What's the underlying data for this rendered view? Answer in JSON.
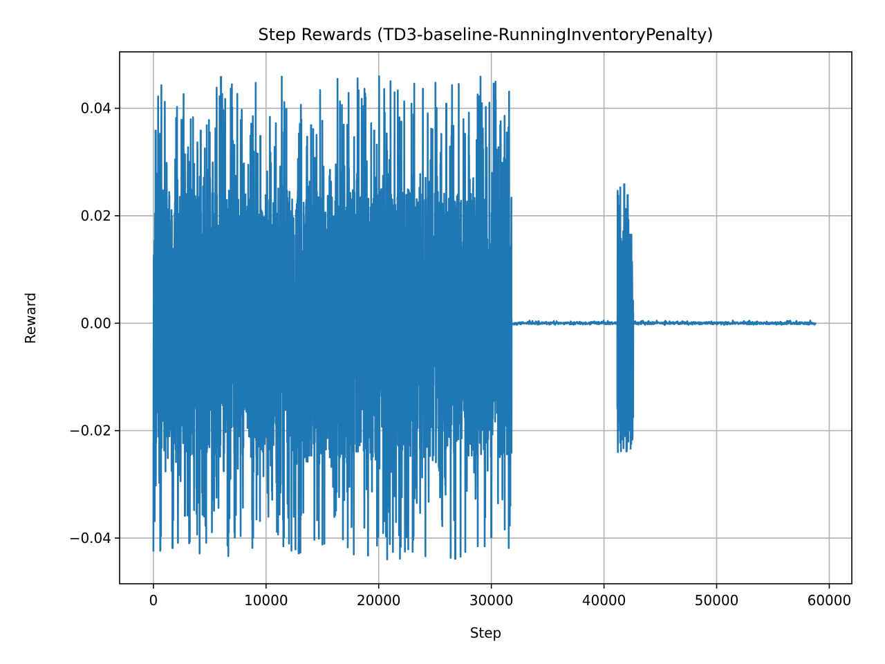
{
  "chart_data": {
    "type": "line",
    "title": "Step Rewards (TD3-baseline-RunningInventoryPenalty)",
    "xlabel": "Step",
    "ylabel": "Reward",
    "xlim": [
      -3000,
      62000
    ],
    "ylim": [
      -0.0485,
      0.0505
    ],
    "xticks": [
      0,
      10000,
      20000,
      30000,
      40000,
      50000,
      60000
    ],
    "xtick_labels": [
      "0",
      "10000",
      "20000",
      "30000",
      "40000",
      "50000",
      "60000"
    ],
    "yticks": [
      -0.04,
      -0.02,
      0.0,
      0.02,
      0.04
    ],
    "ytick_labels": [
      "−0.04",
      "−0.02",
      "0.00",
      "0.02",
      "0.04"
    ],
    "grid": true,
    "legend": "none",
    "series_color": "#1f77b4",
    "series": [
      {
        "points_note_omitted": true,
        "segments": [
          {
            "x_start": 0,
            "x_end": 31800,
            "min": -0.044,
            "max": 0.046,
            "typical_range": [
              -0.025,
              0.025
            ]
          },
          {
            "x_start": 31800,
            "x_end": 41200,
            "min": -0.0003,
            "max": 0.0005,
            "typical_range": [
              -0.0002,
              0.0002
            ]
          },
          {
            "x_start": 41200,
            "x_end": 42600,
            "min": -0.024,
            "max": 0.026,
            "typical_range": [
              -0.02,
              0.02
            ]
          },
          {
            "x_start": 42600,
            "x_end": 58800,
            "min": -0.0003,
            "max": 0.0005,
            "typical_range": [
              -0.0002,
              0.0002
            ]
          }
        ],
        "spikes": [
          {
            "x": 100,
            "y": -0.037
          },
          {
            "x": 200,
            "y": 0.036
          },
          {
            "x": 300,
            "y": 0.028
          },
          {
            "x": 1700,
            "y": -0.042
          },
          {
            "x": 2500,
            "y": 0.038
          },
          {
            "x": 2800,
            "y": -0.036
          },
          {
            "x": 4200,
            "y": 0.036
          },
          {
            "x": 6000,
            "y": 0.046
          },
          {
            "x": 7200,
            "y": -0.039
          },
          {
            "x": 9500,
            "y": 0.035
          },
          {
            "x": 11800,
            "y": 0.04
          },
          {
            "x": 12900,
            "y": -0.043
          },
          {
            "x": 14000,
            "y": 0.037
          },
          {
            "x": 16200,
            "y": -0.035
          },
          {
            "x": 19600,
            "y": 0.036
          },
          {
            "x": 20500,
            "y": -0.037
          },
          {
            "x": 22500,
            "y": -0.04
          },
          {
            "x": 23100,
            "y": 0.039
          },
          {
            "x": 25100,
            "y": 0.037
          },
          {
            "x": 26000,
            "y": 0.041
          },
          {
            "x": 26800,
            "y": -0.044
          },
          {
            "x": 28000,
            "y": 0.035
          },
          {
            "x": 30000,
            "y": -0.04
          },
          {
            "x": 30800,
            "y": 0.037
          },
          {
            "x": 41200,
            "y": -0.016
          },
          {
            "x": 41250,
            "y": 0.007
          },
          {
            "x": 41800,
            "y": 0.026
          },
          {
            "x": 42000,
            "y": -0.024
          },
          {
            "x": 42100,
            "y": 0.024
          },
          {
            "x": 42500,
            "y": -0.007
          }
        ]
      }
    ]
  }
}
